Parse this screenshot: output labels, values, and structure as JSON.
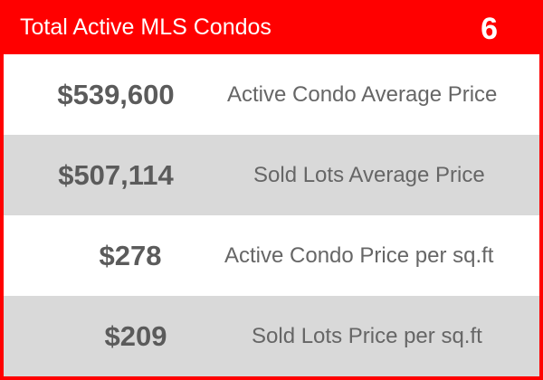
{
  "header": {
    "title": "Total Active MLS Condos",
    "count": "6"
  },
  "rows": [
    {
      "value": "$539,600",
      "label": "Active Condo Average Price",
      "shade": "white"
    },
    {
      "value": "$507,114",
      "label": "Sold Lots Average Price",
      "shade": "gray"
    },
    {
      "value": "$278",
      "label": "Active Condo Price per sq.ft",
      "shade": "white"
    },
    {
      "value": "$209",
      "label": "Sold Lots Price per sq.ft",
      "shade": "gray"
    }
  ],
  "colors": {
    "accent": "#ff0000",
    "row_gray": "#d9d9d9",
    "value_text": "#5b5b5b",
    "label_text": "#666666"
  }
}
